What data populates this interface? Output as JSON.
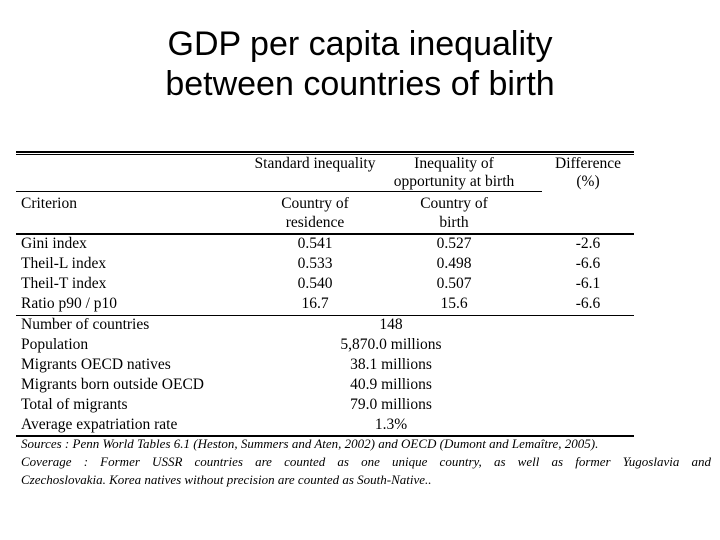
{
  "title": {
    "line1": "GDP per capita inequality",
    "line2": "between countries of birth"
  },
  "table": {
    "header": {
      "standard_inequality": "Standard inequality",
      "inequality_opportunity_line1": "Inequality of",
      "inequality_opportunity_line2": "opportunity at birth",
      "difference_line1": "Difference",
      "difference_line2": "(%)",
      "criterion": "Criterion",
      "country_residence_line1": "Country of",
      "country_residence_line2": "residence",
      "country_birth_line1": "Country of",
      "country_birth_line2": "birth"
    },
    "rows": [
      {
        "criterion": "Gini index",
        "residence": "0.541",
        "birth": "0.527",
        "difference": "-2.6"
      },
      {
        "criterion": "Theil-L index",
        "residence": "0.533",
        "birth": "0.498",
        "difference": "-6.6"
      },
      {
        "criterion": "Theil-T index",
        "residence": "0.540",
        "birth": "0.507",
        "difference": "-6.1"
      },
      {
        "criterion": "Ratio p90 / p10",
        "residence": "16.7",
        "birth": "15.6",
        "difference": "-6.6"
      }
    ],
    "summary": [
      {
        "label": "Number of countries",
        "value": "148"
      },
      {
        "label": "Population",
        "value": "5,870.0 millions"
      },
      {
        "label": "Migrants OECD natives",
        "value": "38.1 millions"
      },
      {
        "label": "Migrants born outside OECD",
        "value": "40.9 millions"
      },
      {
        "label": "Total of migrants",
        "value": "79.0 millions"
      },
      {
        "label": "Average expatriation rate",
        "value": "1.3%"
      }
    ]
  },
  "notes": {
    "sources": "Sources : Penn World Tables 6.1 (Heston, Summers and Aten, 2002) and OECD (Dumont and Lemaître, 2005).",
    "coverage_line1": "Coverage : Former USSR countries are counted as one unique country, as well as former Yugoslavia and",
    "coverage_line2": "Czechoslovakia. Korea natives without precision are counted as South-Native.."
  }
}
